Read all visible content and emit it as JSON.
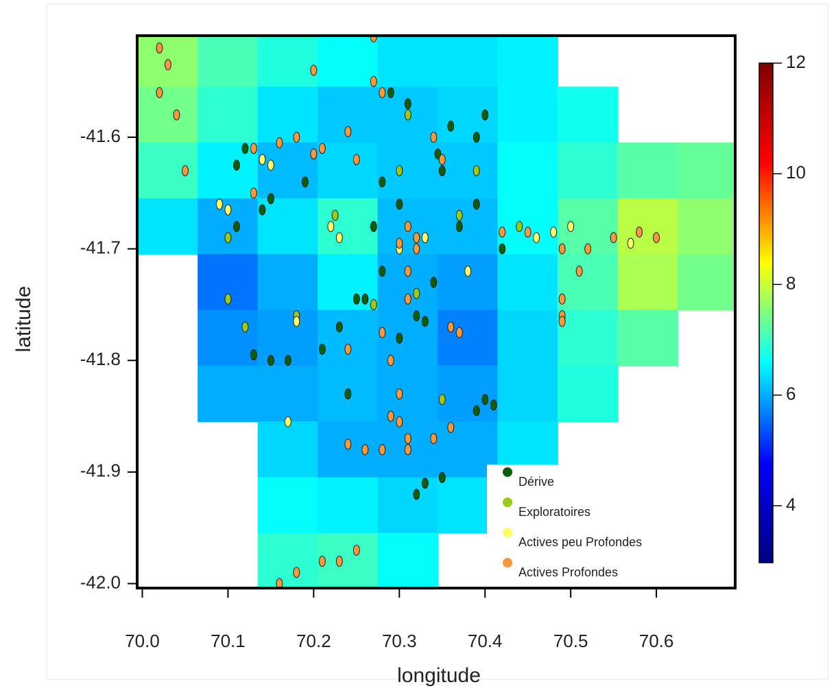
{
  "chart_data": {
    "type": "scatter",
    "x_label": "longitude",
    "y_label": "latitude",
    "xlim": [
      69.994,
      70.692
    ],
    "ylim": [
      -42.004,
      -41.509
    ],
    "xticks": [
      {
        "value": 70,
        "label": "70.0"
      },
      70.1,
      70.2,
      70.3,
      70.4,
      70.5,
      70.6
    ],
    "yticks": [
      -41.6,
      -41.7,
      -41.8,
      -41.9,
      {
        "value": -42,
        "label": "-42.0"
      }
    ],
    "legend": "lower right",
    "field": {
      "x": [
        70.03,
        70.1,
        70.17,
        70.24,
        70.31,
        70.38,
        70.45,
        70.52,
        70.59,
        70.66
      ],
      "y": [
        -41.53,
        -41.58,
        -41.63,
        -41.68,
        -41.73,
        -41.78,
        -41.83,
        -41.88,
        -41.93,
        -41.98
      ],
      "values": [
        [
          7.6,
          7.1,
          6.8,
          6.6,
          6.4,
          6.4,
          6.5,
          null,
          null,
          null
        ],
        [
          7.4,
          6.9,
          6.4,
          6.2,
          6.2,
          6.3,
          6.5,
          6.7,
          null,
          null
        ],
        [
          7.0,
          6.5,
          6.1,
          6.3,
          6.2,
          6.2,
          6.6,
          6.9,
          7.2,
          7.3
        ],
        [
          6.4,
          6.0,
          6.4,
          6.9,
          6.1,
          6.1,
          6.6,
          7.2,
          7.9,
          7.6
        ],
        [
          null,
          5.6,
          6.0,
          6.5,
          6.0,
          5.9,
          6.4,
          7.1,
          7.8,
          7.4
        ],
        [
          null,
          5.8,
          5.9,
          6.1,
          6.0,
          5.7,
          6.3,
          6.9,
          7.2,
          null
        ],
        [
          null,
          6.0,
          6.0,
          6.1,
          6.0,
          5.9,
          6.3,
          6.8,
          null,
          null
        ],
        [
          null,
          null,
          6.3,
          6.0,
          6.0,
          6.0,
          6.4,
          null,
          null,
          null
        ],
        [
          null,
          null,
          6.6,
          6.5,
          6.3,
          6.4,
          null,
          null,
          null,
          null
        ],
        [
          null,
          null,
          6.9,
          7.0,
          6.6,
          null,
          null,
          null,
          null,
          null
        ]
      ]
    },
    "colorbar": {
      "lim": [
        2.97,
        12
      ],
      "ticks": [
        4,
        6,
        8,
        10,
        12
      ],
      "colors": [
        "#00007f",
        "#0000ff",
        "#00ffff",
        "#ffff00",
        "#ff0000",
        "#7f0000"
      ]
    },
    "series": [
      {
        "name": "Dérive",
        "color": "#0b5e0b",
        "x": [
          70.12,
          70.11,
          70.19,
          70.3,
          70.27,
          70.25,
          70.23,
          70.21,
          70.13,
          70.15,
          70.17,
          70.26,
          70.28,
          70.34,
          70.37,
          70.39,
          70.4,
          70.39,
          70.36,
          70.41,
          70.4,
          70.39,
          70.32,
          70.33,
          70.35,
          70.24,
          70.42,
          70.33,
          70.3,
          70.29,
          70.31,
          70.345,
          70.35,
          70.28,
          70.32,
          70.14,
          70.15,
          70.11
        ],
        "y": [
          -41.61,
          -41.625,
          -41.64,
          -41.66,
          -41.68,
          -41.745,
          -41.77,
          -41.79,
          -41.795,
          -41.8,
          -41.8,
          -41.745,
          -41.72,
          -41.73,
          -41.68,
          -41.66,
          -41.58,
          -41.6,
          -41.59,
          -41.84,
          -41.835,
          -41.845,
          -41.92,
          -41.91,
          -41.905,
          -41.83,
          -41.7,
          -41.765,
          -41.78,
          -41.56,
          -41.57,
          -41.615,
          -41.63,
          -41.64,
          -41.76,
          -41.665,
          -41.655,
          -41.68
        ]
      },
      {
        "name": "Exploratoires",
        "color": "#99cc1a",
        "x": [
          70.1,
          70.1,
          70.18,
          70.225,
          70.31,
          70.39,
          70.3,
          70.37,
          70.32,
          70.35,
          70.44,
          70.27,
          70.12
        ],
        "y": [
          -41.69,
          -41.745,
          -41.76,
          -41.67,
          -41.58,
          -41.63,
          -41.63,
          -41.67,
          -41.74,
          -41.835,
          -41.68,
          -41.75,
          -41.77
        ]
      },
      {
        "name": "Actives peu Profondes",
        "color": "#ffff66",
        "x": [
          70.1,
          70.09,
          70.14,
          70.22,
          70.18,
          70.15,
          70.48,
          70.5,
          70.57,
          70.23,
          70.3,
          70.33,
          70.17,
          70.38,
          70.46
        ],
        "y": [
          -41.665,
          -41.66,
          -41.62,
          -41.68,
          -41.765,
          -41.625,
          -41.685,
          -41.68,
          -41.695,
          -41.69,
          -41.7,
          -41.69,
          -41.855,
          -41.72,
          -41.69
        ]
      },
      {
        "name": "Actives Profondes",
        "color": "#f5993c",
        "x": [
          70.02,
          70.03,
          70.02,
          70.04,
          70.05,
          70.13,
          70.16,
          70.18,
          70.21,
          70.24,
          70.25,
          70.34,
          70.35,
          70.31,
          70.32,
          70.31,
          70.31,
          70.32,
          70.3,
          70.36,
          70.37,
          70.29,
          70.3,
          70.3,
          70.31,
          70.24,
          70.26,
          70.28,
          70.31,
          70.34,
          70.36,
          70.55,
          70.58,
          70.6,
          70.52,
          70.51,
          70.49,
          70.49,
          70.49,
          70.21,
          70.23,
          70.25,
          70.16,
          70.18,
          70.28,
          70.29,
          70.24,
          70.2,
          70.27,
          70.27,
          70.28,
          70.2,
          70.13,
          70.42,
          70.45,
          70.49
        ],
        "y": [
          -41.52,
          -41.535,
          -41.56,
          -41.58,
          -41.63,
          -41.61,
          -41.605,
          -41.6,
          -41.61,
          -41.595,
          -41.62,
          -41.6,
          -41.62,
          -41.68,
          -41.7,
          -41.72,
          -41.745,
          -41.69,
          -41.695,
          -41.77,
          -41.775,
          -41.8,
          -41.83,
          -41.855,
          -41.87,
          -41.875,
          -41.88,
          -41.88,
          -41.88,
          -41.87,
          -41.86,
          -41.69,
          -41.685,
          -41.69,
          -41.7,
          -41.72,
          -41.745,
          -41.76,
          -41.765,
          -41.98,
          -41.98,
          -41.97,
          -42.0,
          -41.99,
          -41.775,
          -41.85,
          -41.79,
          -41.615,
          -41.51,
          -41.55,
          -41.56,
          -41.54,
          -41.65,
          -41.685,
          -41.685,
          -41.7
        ]
      }
    ]
  }
}
